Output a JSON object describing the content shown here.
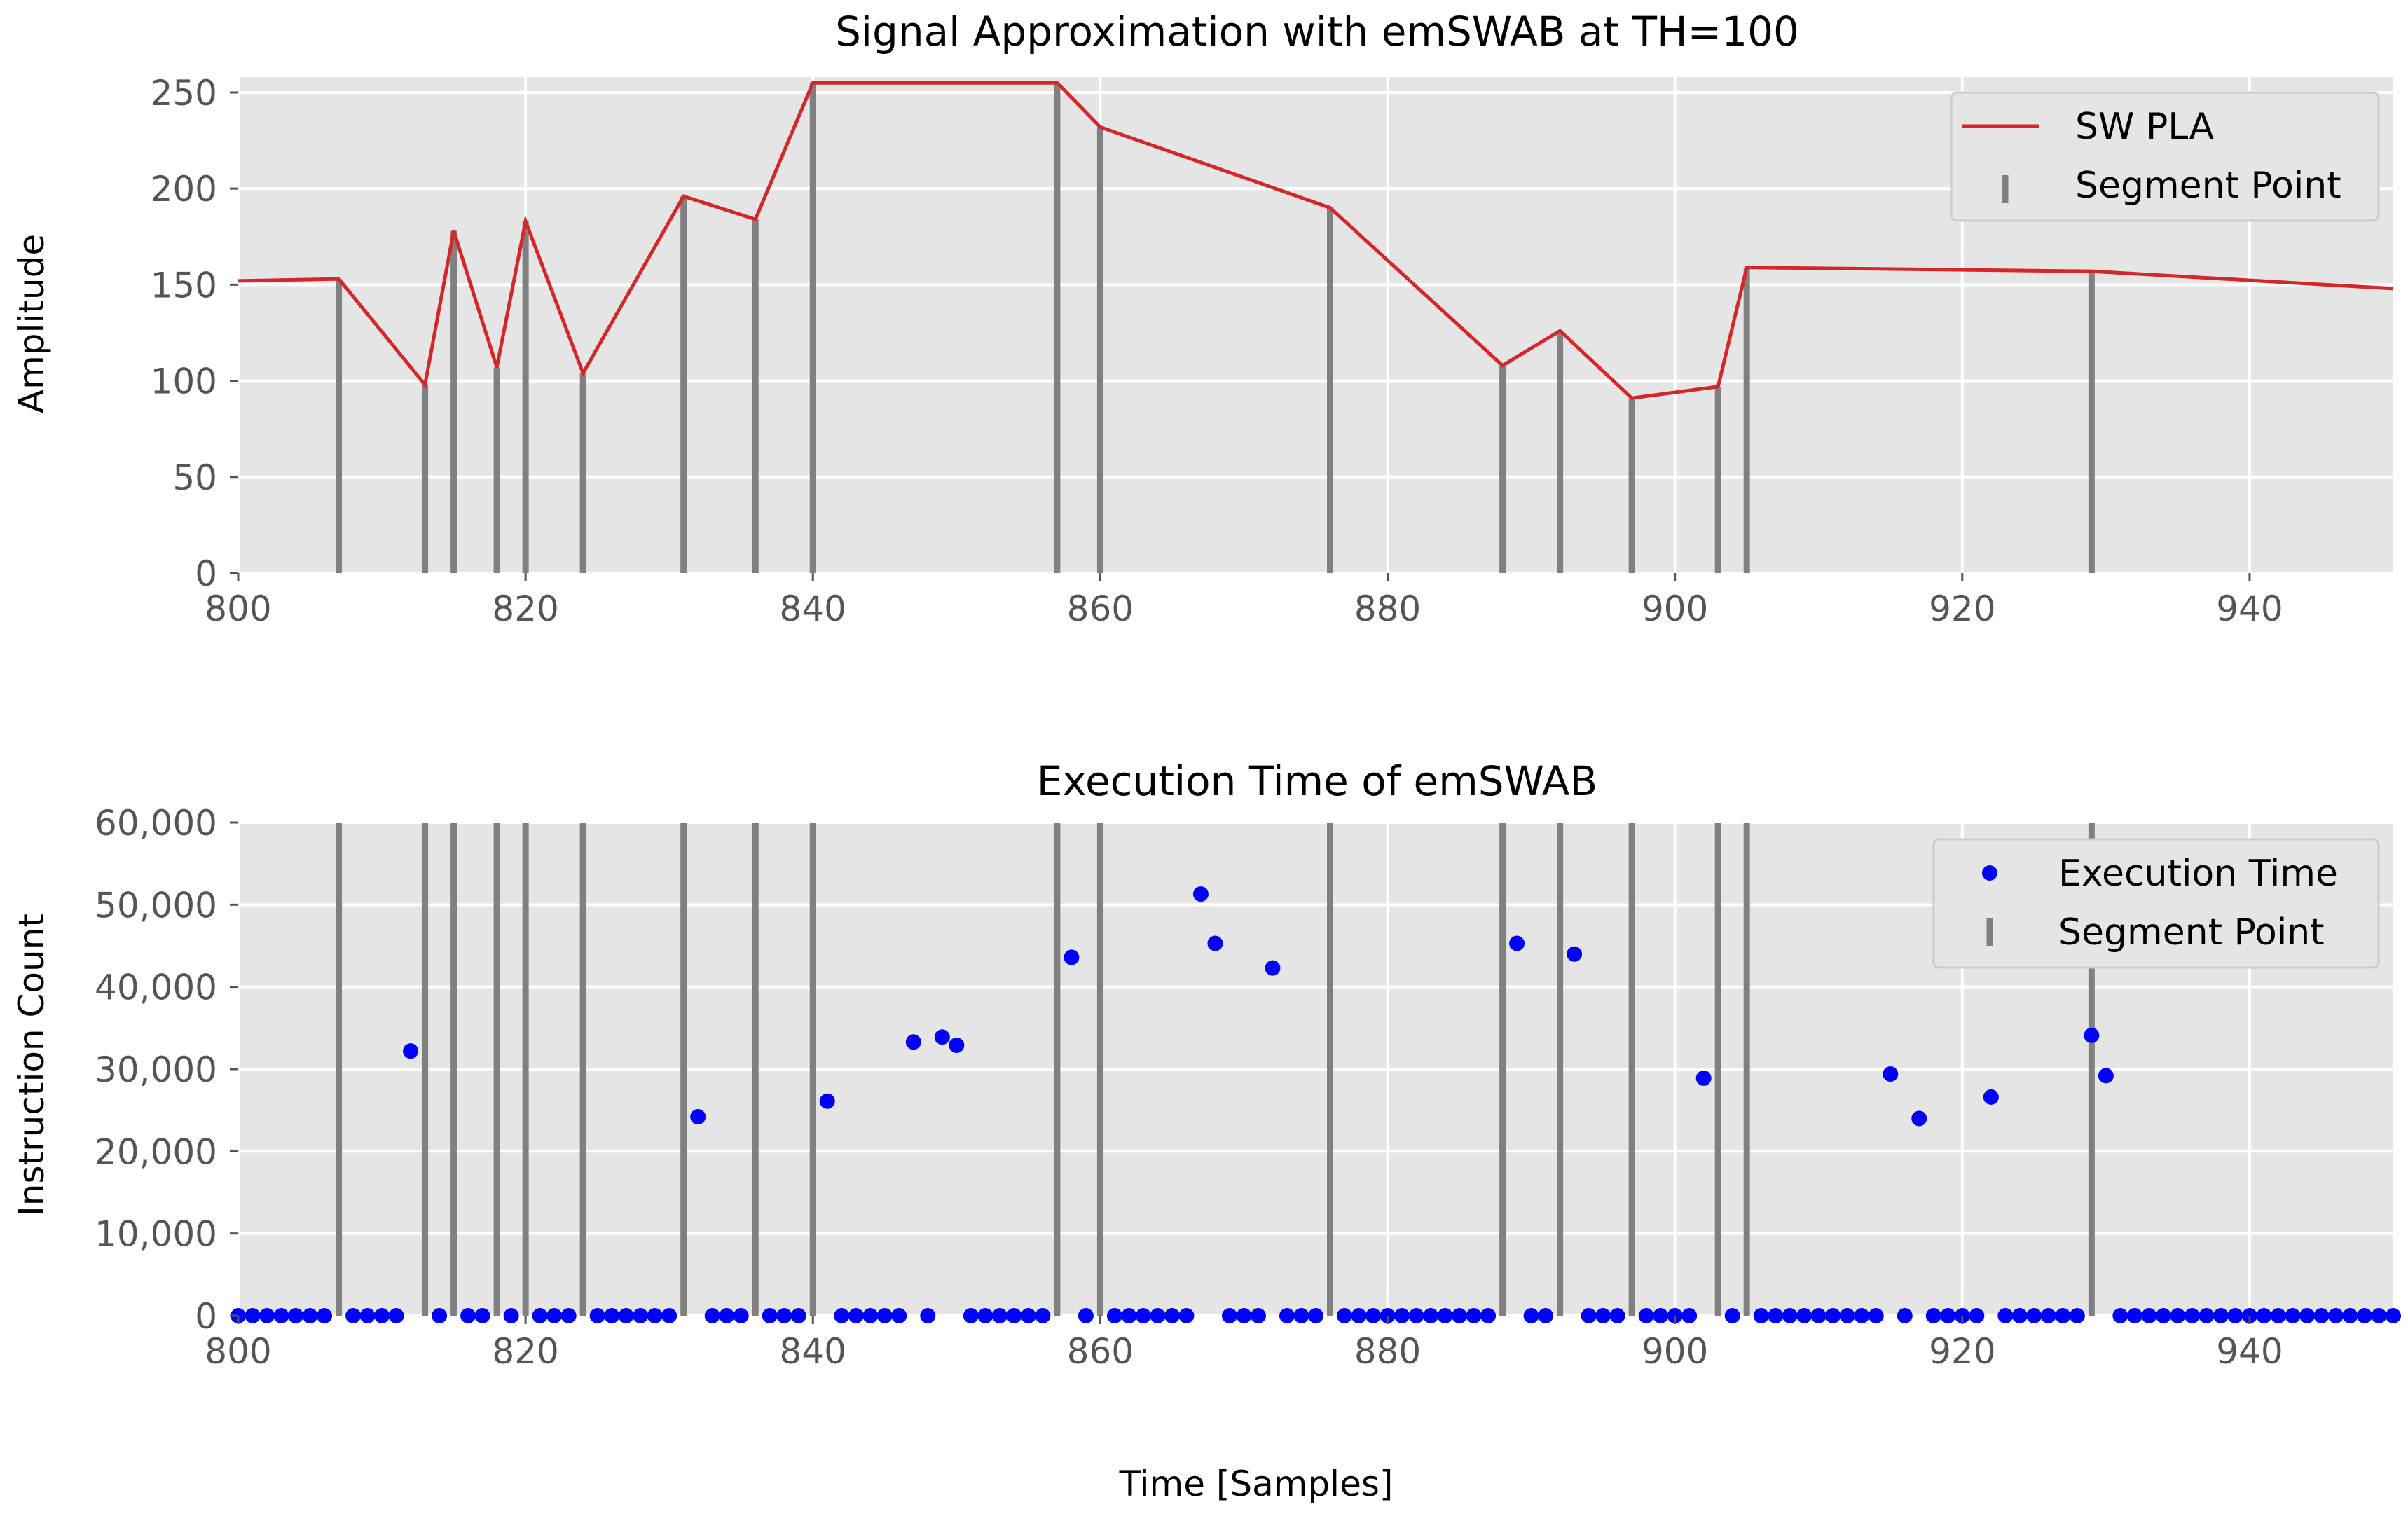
{
  "figure": {
    "xlabel": "Time [Samples]"
  },
  "colors": {
    "plot_bg": "#e5e5e5",
    "grid": "#ffffff",
    "pla_line": "#d62728",
    "segment": "#808080",
    "exec_points": "#0000ff",
    "tick_text": "#555555",
    "label_text": "#000000"
  },
  "chart_data": [
    {
      "type": "line",
      "title": "Signal Approximation with emSWAB at TH=100",
      "xlabel": "",
      "ylabel": "Amplitude",
      "xlim": [
        800,
        950
      ],
      "ylim": [
        0,
        258
      ],
      "xticks": [
        800,
        820,
        840,
        860,
        880,
        900,
        920,
        940
      ],
      "yticks": [
        0,
        50,
        100,
        150,
        200,
        250
      ],
      "ytick_labels": [
        "0",
        "50",
        "100",
        "150",
        "200",
        "250"
      ],
      "grid": true,
      "legend": {
        "placement": "top-right",
        "entries": [
          {
            "label": "SW PLA",
            "marker": "line"
          },
          {
            "label": "Segment Point",
            "marker": "vbar"
          }
        ]
      },
      "series": [
        {
          "name": "SW PLA",
          "x": [
            800,
            807,
            813,
            815,
            818,
            820,
            824,
            831,
            836,
            840,
            857,
            860,
            876,
            888,
            892,
            897,
            903,
            905,
            929,
            950
          ],
          "y": [
            152,
            153,
            98,
            178,
            107,
            183,
            104,
            196,
            184,
            255,
            255,
            232,
            190,
            108,
            126,
            91,
            97,
            159,
            157,
            148
          ]
        },
        {
          "name": "Segment Point",
          "x": [
            807,
            813,
            815,
            818,
            820,
            824,
            831,
            836,
            840,
            857,
            860,
            876,
            888,
            892,
            897,
            903,
            905,
            929
          ],
          "y": [
            153,
            98,
            178,
            107,
            183,
            104,
            196,
            184,
            255,
            255,
            232,
            190,
            108,
            126,
            91,
            97,
            159,
            157
          ]
        }
      ]
    },
    {
      "type": "scatter",
      "title": "Execution Time of emSWAB",
      "xlabel": "Time [Samples]",
      "ylabel": "Instruction Count",
      "xlim": [
        800,
        950
      ],
      "ylim": [
        0,
        60000
      ],
      "xticks": [
        800,
        820,
        840,
        860,
        880,
        900,
        920,
        940
      ],
      "yticks": [
        0,
        10000,
        20000,
        30000,
        40000,
        50000,
        60000
      ],
      "ytick_labels": [
        "0",
        "10,000",
        "20,000",
        "30,000",
        "40,000",
        "50,000",
        "60,000"
      ],
      "grid": true,
      "legend": {
        "placement": "top-right",
        "entries": [
          {
            "label": "Execution Time",
            "marker": "dot"
          },
          {
            "label": "Segment Point",
            "marker": "vbar"
          }
        ]
      },
      "series": [
        {
          "name": "Execution Time",
          "x": [
            812,
            832,
            841,
            847,
            849,
            850,
            858,
            867,
            868,
            872,
            889,
            893,
            902,
            915,
            917,
            922,
            929,
            930
          ],
          "y": [
            32200,
            24200,
            26100,
            33300,
            33900,
            32900,
            43600,
            51300,
            45300,
            42300,
            45300,
            44000,
            28900,
            29400,
            24000,
            26600,
            34100,
            29200
          ]
        },
        {
          "name": "Execution Time (baseline)",
          "x_range": [
            800,
            950
          ],
          "y": 0,
          "excluded_x": [
            807,
            812,
            813,
            815,
            818,
            820,
            824,
            831,
            832,
            836,
            840,
            841,
            847,
            849,
            850,
            857,
            858,
            860,
            867,
            868,
            872,
            876,
            888,
            889,
            892,
            893,
            897,
            902,
            903,
            905,
            915,
            917,
            922,
            929,
            930
          ]
        },
        {
          "name": "Segment Point",
          "x": [
            807,
            813,
            815,
            818,
            820,
            824,
            831,
            836,
            840,
            857,
            860,
            876,
            888,
            892,
            897,
            903,
            905,
            929
          ]
        }
      ]
    }
  ]
}
